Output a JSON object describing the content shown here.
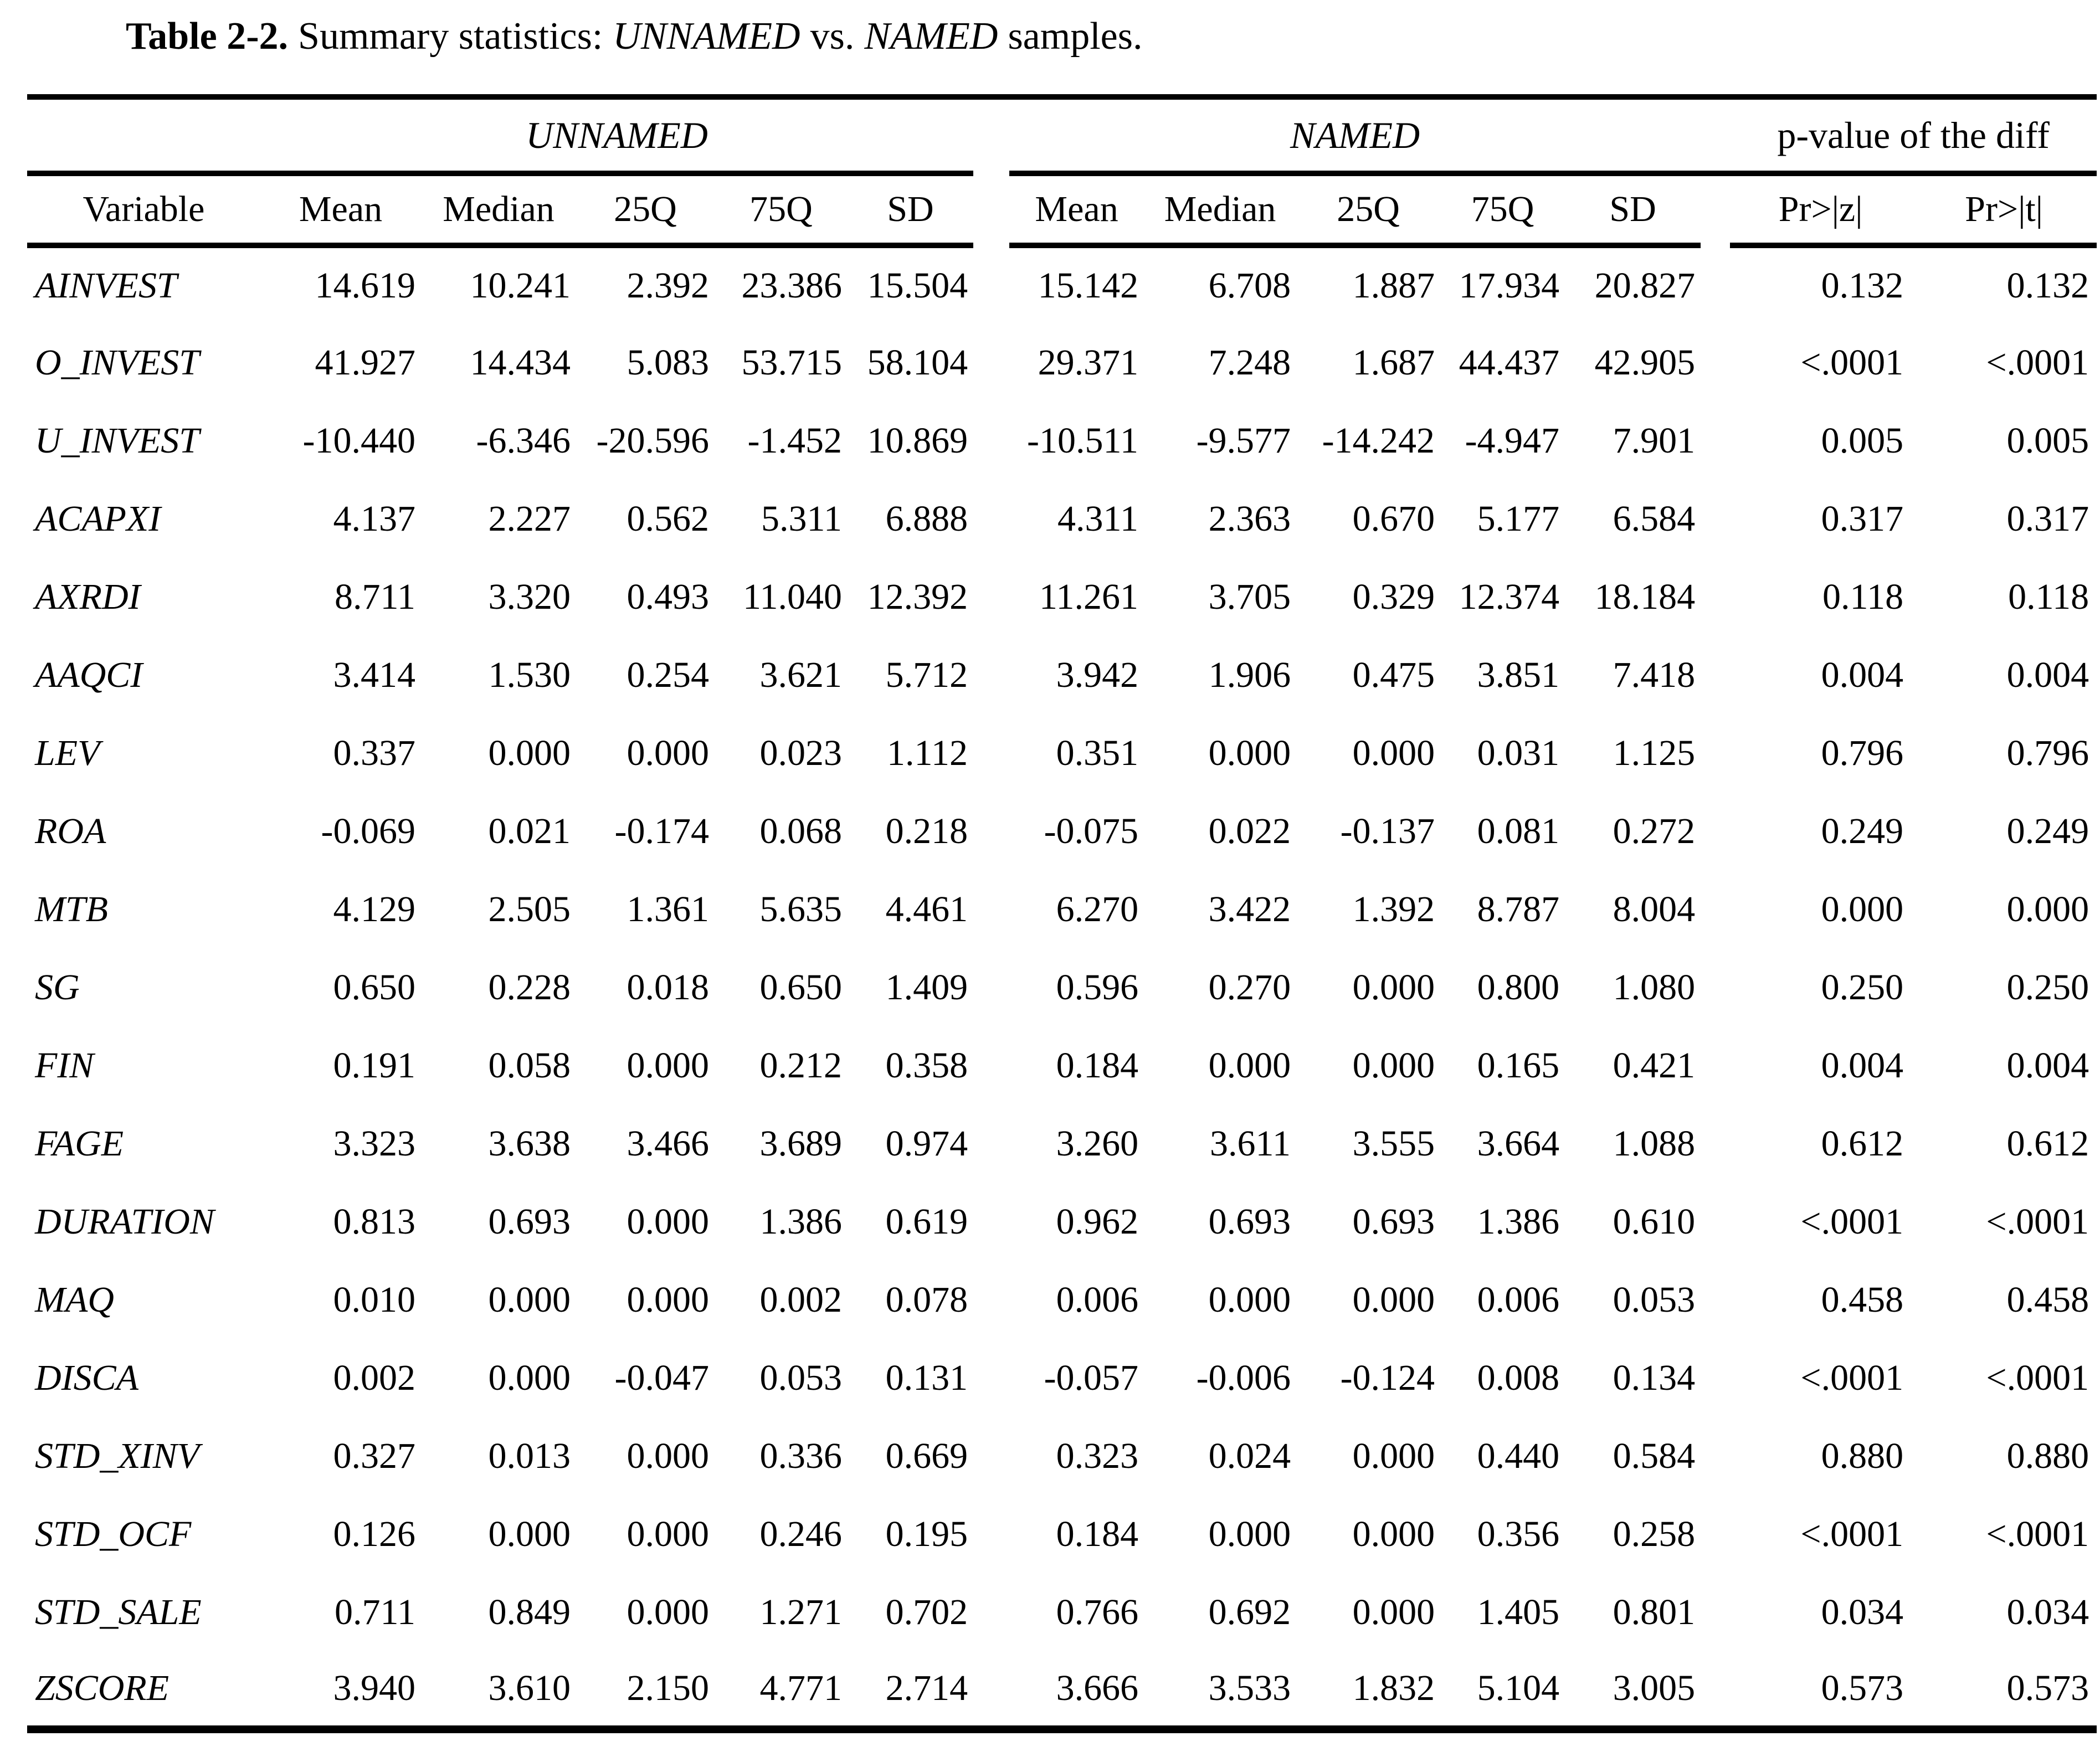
{
  "title": {
    "prefix": "Table 2-2.",
    "middle": "Summary statistics:",
    "group1": "UNNAMED",
    "vs": "vs.",
    "group2": "NAMED",
    "suffix": "samples."
  },
  "header": {
    "group_unnamed": "UNNAMED",
    "group_named": "NAMED",
    "group_pvalue": "p-value of the diff",
    "variable_col": "Variable",
    "stat_cols": [
      "Mean",
      "Median",
      "25Q",
      "75Q",
      "SD"
    ],
    "pvalue_cols": [
      "Pr>|z|",
      "Pr>|t|"
    ]
  },
  "rows": [
    {
      "variable": "AINVEST",
      "unnamed": [
        "14.619",
        "10.241",
        "2.392",
        "23.386",
        "15.504"
      ],
      "named": [
        "15.142",
        "6.708",
        "1.887",
        "17.934",
        "20.827"
      ],
      "pvalues": [
        "0.132",
        "0.132"
      ]
    },
    {
      "variable": "O_INVEST",
      "unnamed": [
        "41.927",
        "14.434",
        "5.083",
        "53.715",
        "58.104"
      ],
      "named": [
        "29.371",
        "7.248",
        "1.687",
        "44.437",
        "42.905"
      ],
      "pvalues": [
        "<.0001",
        "<.0001"
      ]
    },
    {
      "variable": "U_INVEST",
      "unnamed": [
        "-10.440",
        "-6.346",
        "-20.596",
        "-1.452",
        "10.869"
      ],
      "named": [
        "-10.511",
        "-9.577",
        "-14.242",
        "-4.947",
        "7.901"
      ],
      "pvalues": [
        "0.005",
        "0.005"
      ]
    },
    {
      "variable": "ACAPXI",
      "unnamed": [
        "4.137",
        "2.227",
        "0.562",
        "5.311",
        "6.888"
      ],
      "named": [
        "4.311",
        "2.363",
        "0.670",
        "5.177",
        "6.584"
      ],
      "pvalues": [
        "0.317",
        "0.317"
      ]
    },
    {
      "variable": "AXRDI",
      "unnamed": [
        "8.711",
        "3.320",
        "0.493",
        "11.040",
        "12.392"
      ],
      "named": [
        "11.261",
        "3.705",
        "0.329",
        "12.374",
        "18.184"
      ],
      "pvalues": [
        "0.118",
        "0.118"
      ]
    },
    {
      "variable": "AAQCI",
      "unnamed": [
        "3.414",
        "1.530",
        "0.254",
        "3.621",
        "5.712"
      ],
      "named": [
        "3.942",
        "1.906",
        "0.475",
        "3.851",
        "7.418"
      ],
      "pvalues": [
        "0.004",
        "0.004"
      ]
    },
    {
      "variable": "LEV",
      "unnamed": [
        "0.337",
        "0.000",
        "0.000",
        "0.023",
        "1.112"
      ],
      "named": [
        "0.351",
        "0.000",
        "0.000",
        "0.031",
        "1.125"
      ],
      "pvalues": [
        "0.796",
        "0.796"
      ]
    },
    {
      "variable": "ROA",
      "unnamed": [
        "-0.069",
        "0.021",
        "-0.174",
        "0.068",
        "0.218"
      ],
      "named": [
        "-0.075",
        "0.022",
        "-0.137",
        "0.081",
        "0.272"
      ],
      "pvalues": [
        "0.249",
        "0.249"
      ]
    },
    {
      "variable": "MTB",
      "unnamed": [
        "4.129",
        "2.505",
        "1.361",
        "5.635",
        "4.461"
      ],
      "named": [
        "6.270",
        "3.422",
        "1.392",
        "8.787",
        "8.004"
      ],
      "pvalues": [
        "0.000",
        "0.000"
      ]
    },
    {
      "variable": "SG",
      "unnamed": [
        "0.650",
        "0.228",
        "0.018",
        "0.650",
        "1.409"
      ],
      "named": [
        "0.596",
        "0.270",
        "0.000",
        "0.800",
        "1.080"
      ],
      "pvalues": [
        "0.250",
        "0.250"
      ]
    },
    {
      "variable": "FIN",
      "unnamed": [
        "0.191",
        "0.058",
        "0.000",
        "0.212",
        "0.358"
      ],
      "named": [
        "0.184",
        "0.000",
        "0.000",
        "0.165",
        "0.421"
      ],
      "pvalues": [
        "0.004",
        "0.004"
      ]
    },
    {
      "variable": "FAGE",
      "unnamed": [
        "3.323",
        "3.638",
        "3.466",
        "3.689",
        "0.974"
      ],
      "named": [
        "3.260",
        "3.611",
        "3.555",
        "3.664",
        "1.088"
      ],
      "pvalues": [
        "0.612",
        "0.612"
      ]
    },
    {
      "variable": "DURATION",
      "unnamed": [
        "0.813",
        "0.693",
        "0.000",
        "1.386",
        "0.619"
      ],
      "named": [
        "0.962",
        "0.693",
        "0.693",
        "1.386",
        "0.610"
      ],
      "pvalues": [
        "<.0001",
        "<.0001"
      ]
    },
    {
      "variable": "MAQ",
      "unnamed": [
        "0.010",
        "0.000",
        "0.000",
        "0.002",
        "0.078"
      ],
      "named": [
        "0.006",
        "0.000",
        "0.000",
        "0.006",
        "0.053"
      ],
      "pvalues": [
        "0.458",
        "0.458"
      ]
    },
    {
      "variable": "DISCA",
      "unnamed": [
        "0.002",
        "0.000",
        "-0.047",
        "0.053",
        "0.131"
      ],
      "named": [
        "-0.057",
        "-0.006",
        "-0.124",
        "0.008",
        "0.134"
      ],
      "pvalues": [
        "<.0001",
        "<.0001"
      ]
    },
    {
      "variable": "STD_XINV",
      "unnamed": [
        "0.327",
        "0.013",
        "0.000",
        "0.336",
        "0.669"
      ],
      "named": [
        "0.323",
        "0.024",
        "0.000",
        "0.440",
        "0.584"
      ],
      "pvalues": [
        "0.880",
        "0.880"
      ]
    },
    {
      "variable": "STD_OCF",
      "unnamed": [
        "0.126",
        "0.000",
        "0.000",
        "0.246",
        "0.195"
      ],
      "named": [
        "0.184",
        "0.000",
        "0.000",
        "0.356",
        "0.258"
      ],
      "pvalues": [
        "<.0001",
        "<.0001"
      ]
    },
    {
      "variable": "STD_SALE",
      "unnamed": [
        "0.711",
        "0.849",
        "0.000",
        "1.271",
        "0.702"
      ],
      "named": [
        "0.766",
        "0.692",
        "0.000",
        "1.405",
        "0.801"
      ],
      "pvalues": [
        "0.034",
        "0.034"
      ]
    },
    {
      "variable": "ZSCORE",
      "unnamed": [
        "3.940",
        "3.610",
        "2.150",
        "4.771",
        "2.714"
      ],
      "named": [
        "3.666",
        "3.533",
        "1.832",
        "5.104",
        "3.005"
      ],
      "pvalues": [
        "0.573",
        "0.573"
      ]
    }
  ]
}
